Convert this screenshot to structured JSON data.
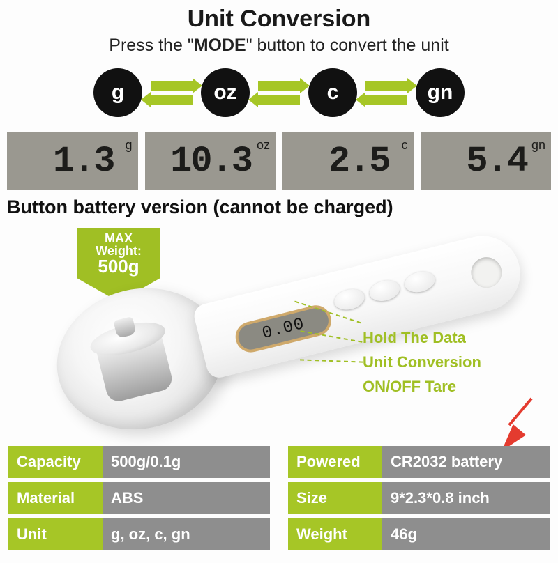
{
  "header": {
    "title": "Unit Conversion",
    "subtitle_pre": "Press the \"",
    "subtitle_bold": "MODE",
    "subtitle_post": "\" button to convert the unit"
  },
  "units": [
    "g",
    "oz",
    "c",
    "gn"
  ],
  "lcd": [
    {
      "val": "1.3",
      "unit": "g"
    },
    {
      "val": "10.3",
      "unit": "oz"
    },
    {
      "val": "2.5",
      "unit": "c"
    },
    {
      "val": "5.4",
      "unit": "gn"
    }
  ],
  "subheading": "Button battery version (cannot be charged)",
  "max_tag": {
    "l1": "MAX",
    "l2": "Weight:",
    "val": "500g"
  },
  "device_lcd": "0.00",
  "callouts": {
    "hold": "Hold The Data",
    "unit": "Unit Conversion",
    "tare": "ON/OFF Tare"
  },
  "specs_left": [
    {
      "k": "Capacity",
      "v": "500g/0.1g"
    },
    {
      "k": "Material",
      "v": "ABS"
    },
    {
      "k": "Unit",
      "v": "g, oz, c, gn"
    }
  ],
  "specs_right": [
    {
      "k": "Powered",
      "v": "CR2032 battery"
    },
    {
      "k": "Size",
      "v": "9*2.3*0.8 inch"
    },
    {
      "k": "Weight",
      "v": "46g"
    }
  ],
  "colors": {
    "accent": "#a6c626",
    "lcd_bg": "#9a9890",
    "circle_bg": "#111111",
    "spec_key_bg": "#a6c626",
    "spec_val_bg": "#8e8e8e",
    "arrow_red": "#e43b2f"
  }
}
